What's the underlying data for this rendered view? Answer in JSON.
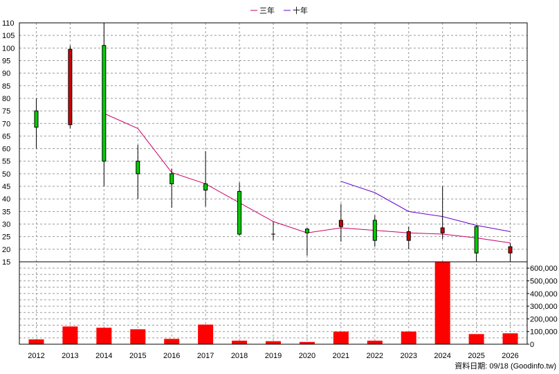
{
  "chart_data": {
    "type": "candlestick",
    "legend": {
      "position": "top-center",
      "items": [
        {
          "label": "三年",
          "color": "#cc0066"
        },
        {
          "label": "十年",
          "color": "#6600cc"
        }
      ]
    },
    "categories": [
      "2012",
      "2013",
      "2014",
      "2015",
      "2016",
      "2017",
      "2018",
      "2019",
      "2020",
      "2021",
      "2022",
      "2023",
      "2024",
      "2025",
      "2026"
    ],
    "price_axis": {
      "ylim": [
        15,
        110
      ],
      "ticks": [
        15,
        20,
        25,
        30,
        35,
        40,
        45,
        50,
        55,
        60,
        65,
        70,
        75,
        80,
        85,
        90,
        95,
        100,
        105,
        110
      ]
    },
    "volume_axis": {
      "ylim": [
        0,
        650000
      ],
      "ticks": [
        0,
        100000,
        200000,
        300000,
        400000,
        500000,
        600000
      ],
      "tick_labels": [
        "0",
        "100,000",
        "200,000",
        "300,000",
        "400,000",
        "500,000",
        "600,000"
      ]
    },
    "candles": [
      {
        "year": "2012",
        "open": 68.5,
        "close": 75,
        "high": 80,
        "low": 60
      },
      {
        "year": "2013",
        "open": 99.5,
        "close": 69.5,
        "high": 101,
        "low": 68
      },
      {
        "year": "2014",
        "open": 55,
        "close": 101,
        "high": 110,
        "low": 45
      },
      {
        "year": "2015",
        "open": 50,
        "close": 55,
        "high": 61.5,
        "low": 40
      },
      {
        "year": "2016",
        "open": 46,
        "close": 50,
        "high": 52,
        "low": 36.5
      },
      {
        "year": "2017",
        "open": 43.5,
        "close": 46,
        "high": 59,
        "low": 37
      },
      {
        "year": "2018",
        "open": 26,
        "close": 43,
        "high": 46.5,
        "low": 25.5
      },
      {
        "year": "2019",
        "open": 26,
        "close": 26,
        "high": 31,
        "low": 23.5
      },
      {
        "year": "2020",
        "open": 26.5,
        "close": 28,
        "high": 28.5,
        "low": 17.5
      },
      {
        "year": "2021",
        "open": 31.5,
        "close": 29,
        "high": 38,
        "low": 23
      },
      {
        "year": "2022",
        "open": 23.5,
        "close": 31.5,
        "high": 33.5,
        "low": 21
      },
      {
        "year": "2023",
        "open": 27,
        "close": 23.5,
        "high": 29,
        "low": 20
      },
      {
        "year": "2024",
        "open": 28.5,
        "close": 26.5,
        "high": 45,
        "low": 24
      },
      {
        "year": "2025",
        "open": 18.5,
        "close": 29,
        "high": 29.5,
        "low": 15
      },
      {
        "year": "2026",
        "open": 21,
        "close": 18.5,
        "high": 22.5,
        "low": 15
      }
    ],
    "series": [
      {
        "name": "三年",
        "color": "#cc0066",
        "values": [
          null,
          null,
          74,
          68,
          50.5,
          46,
          38.5,
          31,
          26.5,
          28.5,
          27.5,
          26.5,
          26,
          24.5,
          22.5
        ]
      },
      {
        "name": "十年",
        "color": "#6600cc",
        "values": [
          null,
          null,
          null,
          null,
          null,
          null,
          null,
          null,
          null,
          47,
          42.5,
          35,
          33,
          29.5,
          27
        ]
      }
    ],
    "volume": [
      38000,
      140000,
      130000,
      118000,
      42000,
      155000,
      28000,
      24000,
      18000,
      100000,
      28000,
      100000,
      670000,
      80000,
      86000
    ],
    "colors": {
      "up_candle": "#00cc00",
      "down_candle": "#cc0000",
      "volume_bar": "#ff0000",
      "grid": "#999999"
    },
    "grid": true,
    "footer_note": "資料日期: 09/18  (Goodinfo.tw)"
  }
}
